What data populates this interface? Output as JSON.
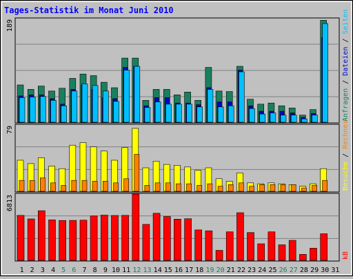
{
  "chart_data": {
    "type": "bar",
    "title": "Tages-Statistik im Monat Juni 2010",
    "colors": {
      "background": "#c0c0c0",
      "title": "#0000ff",
      "anfragen": "#1a7f5e",
      "dateien": "#0000cc",
      "seiten": "#00bfff",
      "besuche": "#ffff00",
      "rechner": "#ff8000",
      "kb": "#ff0000",
      "weekend_label": "#1a7f5e"
    },
    "x_labels": [
      "1",
      "2",
      "3",
      "4",
      "5",
      "6",
      "7",
      "8",
      "9",
      "10",
      "11",
      "12",
      "13",
      "14",
      "15",
      "16",
      "17",
      "18",
      "19",
      "20",
      "21",
      "22",
      "23",
      "24",
      "25",
      "26",
      "27",
      "28",
      "29",
      "30",
      "31"
    ],
    "weekend_days": [
      5,
      6,
      12,
      13,
      19,
      20,
      26,
      27
    ],
    "panels": [
      {
        "id": "top",
        "max_label": "189",
        "ymax": 189,
        "legend": [
          {
            "text": "Anfragen",
            "color": "#1a7f5e"
          },
          {
            "text": " / ",
            "color": "#000000"
          },
          {
            "text": "Dateien",
            "color": "#0000cc"
          },
          {
            "text": " / ",
            "color": "#000000"
          },
          {
            "text": "Seiten",
            "color": "#00bfff"
          }
        ],
        "series": [
          {
            "name": "Anfragen",
            "color": "#1a7f5e",
            "values": [
              68,
              60,
              66,
              57,
              62,
              80,
              88,
              85,
              73,
              63,
              117,
              117,
              40,
              60,
              60,
              50,
              55,
              40,
              100,
              57,
              56,
              102,
              42,
              33,
              35,
              30,
              26,
              13,
              23,
              186,
              0
            ]
          },
          {
            "name": "Dateien",
            "color": "#0000cc",
            "values": [
              48,
              50,
              50,
              43,
              33,
              60,
              68,
              60,
              45,
              43,
              100,
              102,
              30,
              45,
              45,
              35,
              35,
              32,
              63,
              37,
              37,
              95,
              30,
              20,
              20,
              20,
              17,
              9,
              16,
              155,
              0
            ]
          },
          {
            "name": "Seiten",
            "color": "#00bfff",
            "values": [
              45,
              46,
              47,
              40,
              30,
              57,
              70,
              67,
              57,
              38,
              95,
              102,
              27,
              37,
              33,
              33,
              33,
              28,
              60,
              28,
              30,
              92,
              25,
              15,
              17,
              13,
              13,
              6,
              13,
              180,
              0
            ]
          }
        ]
      },
      {
        "id": "mid",
        "max_label": "79",
        "ymax": 79,
        "legend": [
          {
            "text": "Besuche",
            "color": "#ffff00"
          },
          {
            "text": " / ",
            "color": "#000000"
          },
          {
            "text": "Rechner",
            "color": "#ff8000"
          }
        ],
        "series": [
          {
            "name": "Besuche",
            "color": "#ffff00",
            "values": [
              37,
              33,
              40,
              30,
              27,
              55,
              58,
              53,
              48,
              37,
              52,
              75,
              28,
              36,
              32,
              31,
              29,
              25,
              28,
              15,
              12,
              22,
              10,
              9,
              10,
              9,
              8,
              6,
              9,
              27,
              0
            ]
          },
          {
            "name": "Rechner",
            "color": "#ff8000",
            "values": [
              13,
              13,
              16,
              10,
              7,
              13,
              13,
              12,
              12,
              10,
              15,
              44,
              7,
              10,
              10,
              9,
              9,
              7,
              9,
              6,
              8,
              10,
              6,
              8,
              8,
              8,
              8,
              4,
              7,
              13,
              0
            ]
          }
        ]
      },
      {
        "id": "bottom",
        "max_label": "6813",
        "ymax": 6813,
        "legend": [
          {
            "text": "kB",
            "color": "#ff0000"
          }
        ],
        "series": [
          {
            "name": "kB",
            "color": "#ff0000",
            "values": [
              4620,
              4260,
              5100,
              4160,
              4100,
              4110,
              4130,
              4560,
              4650,
              4610,
              4630,
              6813,
              3700,
              4840,
              4510,
              4240,
              4280,
              3130,
              3040,
              1030,
              2930,
              4900,
              2860,
              1700,
              2930,
              1600,
              2060,
              620,
              1250,
              2730,
              0
            ]
          }
        ]
      }
    ]
  }
}
